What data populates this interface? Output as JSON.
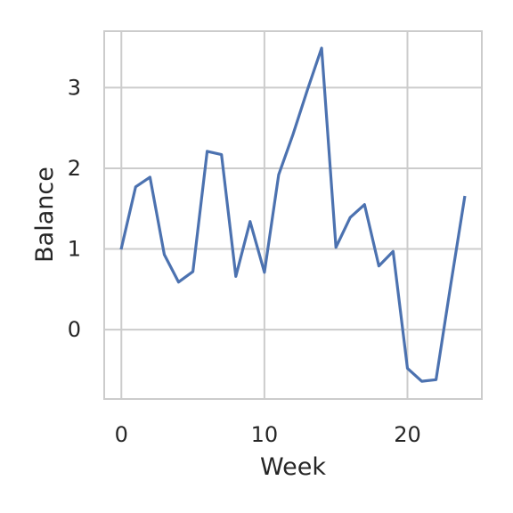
{
  "chart_data": {
    "type": "line",
    "title": "",
    "xlabel": "Week",
    "ylabel": "Balance",
    "xlim": [
      -1.2,
      25.2
    ],
    "ylim": [
      -0.86,
      3.7
    ],
    "x_ticks": [
      0,
      10,
      20
    ],
    "y_ticks": [
      0,
      1,
      2,
      3
    ],
    "grid": true,
    "series": [
      {
        "color": "#4c72b0",
        "x": [
          0,
          1,
          2,
          3,
          4,
          5,
          6,
          7,
          8,
          9,
          10,
          11,
          12,
          13,
          14,
          15,
          16,
          17,
          18,
          19,
          20,
          21,
          22,
          23,
          24
        ],
        "y": [
          1.01,
          1.77,
          1.89,
          0.93,
          0.59,
          0.72,
          2.21,
          2.17,
          0.66,
          1.34,
          0.71,
          1.92,
          2.42,
          2.97,
          3.49,
          1.02,
          1.39,
          1.55,
          0.79,
          0.97,
          -0.48,
          -0.64,
          -0.62,
          0.53,
          1.64
        ]
      }
    ]
  }
}
